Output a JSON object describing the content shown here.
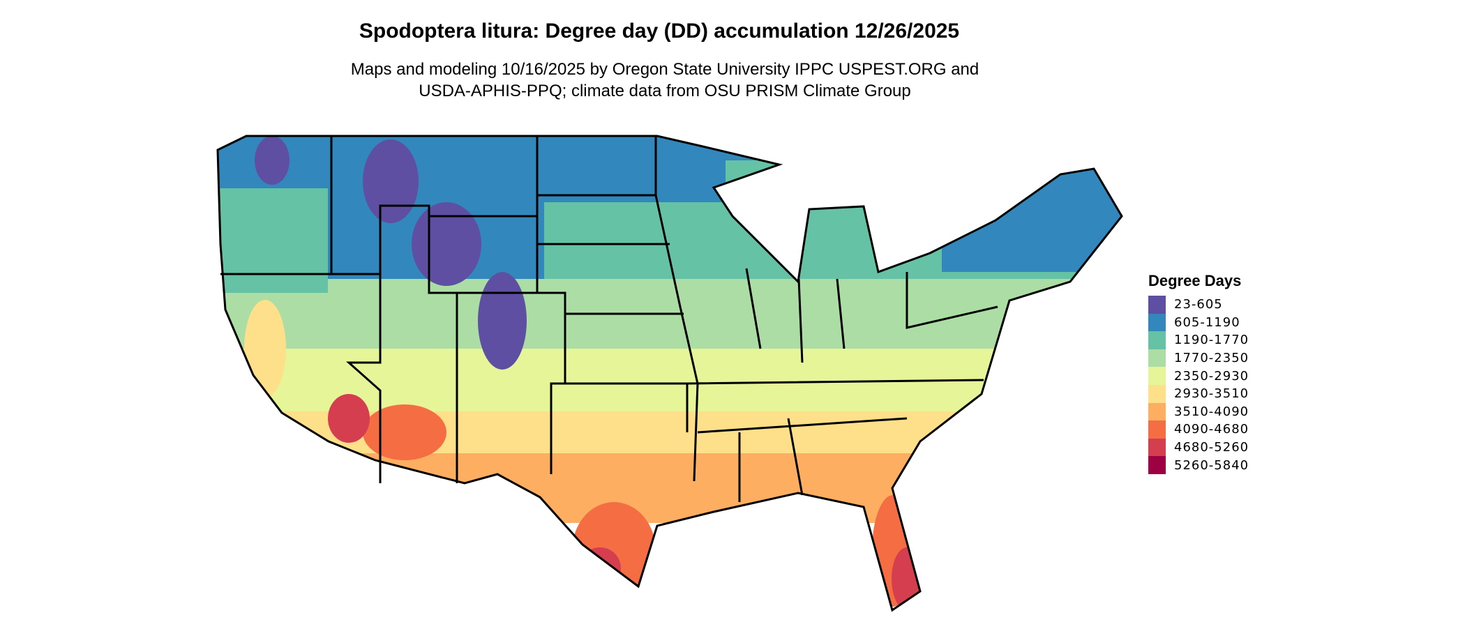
{
  "title": "Spodoptera litura: Degree day (DD) accumulation 12/26/2025",
  "subtitle_line1": "Maps and modeling 10/16/2025 by Oregon State University IPPC USPEST.ORG and",
  "subtitle_line2": "USDA-APHIS-PPQ; climate data from OSU PRISM Climate Group",
  "legend": {
    "title": "Degree Days",
    "items": [
      {
        "label": "23-605",
        "color": "#5E4FA2"
      },
      {
        "label": "605-1190",
        "color": "#3288BD"
      },
      {
        "label": "1190-1770",
        "color": "#66C2A5"
      },
      {
        "label": "1770-2350",
        "color": "#ABDDA4"
      },
      {
        "label": "2350-2930",
        "color": "#E6F598"
      },
      {
        "label": "2930-3510",
        "color": "#FEE08B"
      },
      {
        "label": "3510-4090",
        "color": "#FDAE61"
      },
      {
        "label": "4090-4680",
        "color": "#F46D43"
      },
      {
        "label": "4680-5260",
        "color": "#D53E4F"
      },
      {
        "label": "5260-5840",
        "color": "#9E0142"
      }
    ]
  },
  "map": {
    "region": "Contiguous United States",
    "boundary_color": "#000000"
  }
}
